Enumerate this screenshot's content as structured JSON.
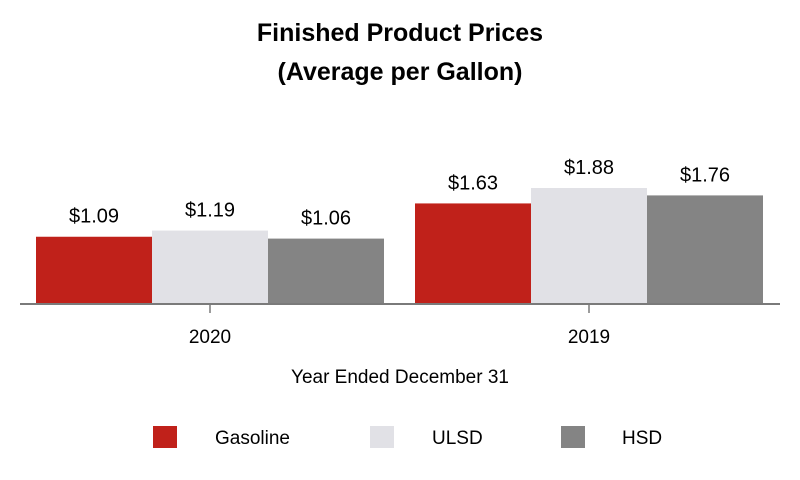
{
  "chart_data": {
    "type": "bar",
    "title": "Finished Product Prices",
    "subtitle": "(Average per Gallon)",
    "xlabel": "Year Ended December 31",
    "ylabel": "",
    "categories": [
      "2020",
      "2019"
    ],
    "ylim": [
      0,
      2.0
    ],
    "grid": false,
    "legend_position": "bottom",
    "series": [
      {
        "name": "Gasoline",
        "color": "#c0211a",
        "values": [
          1.09,
          1.63
        ],
        "labels": [
          "$1.09",
          "$1.63"
        ]
      },
      {
        "name": "ULSD",
        "color": "#e1e1e6",
        "values": [
          1.19,
          1.88
        ],
        "labels": [
          "$1.19",
          "$1.88"
        ]
      },
      {
        "name": "HSD",
        "color": "#848484",
        "values": [
          1.06,
          1.76
        ],
        "labels": [
          "$1.06",
          "$1.76"
        ]
      }
    ]
  }
}
